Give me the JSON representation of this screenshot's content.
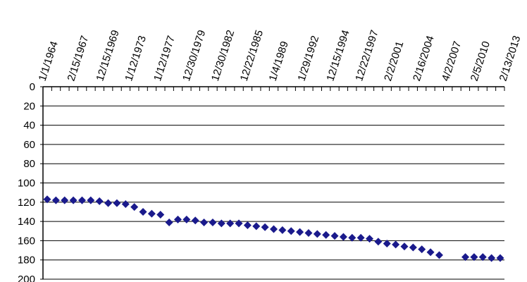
{
  "chart_data": {
    "type": "scatter",
    "title": "",
    "xlabel": "",
    "ylabel": "",
    "y_axis_reversed": true,
    "ylim": [
      0,
      200
    ],
    "y_ticks": [
      0,
      20,
      40,
      60,
      80,
      100,
      120,
      140,
      160,
      180,
      200
    ],
    "x_category_labels": [
      "1/1/1964",
      "2/15/1967",
      "12/15/1969",
      "1/12/1973",
      "1/12/1977",
      "12/30/1979",
      "12/30/1982",
      "12/22/1985",
      "1/4/1989",
      "1/29/1992",
      "12/15/1994",
      "12/22/1997",
      "2/2/2001",
      "2/16/2004",
      "4/2/2007",
      "2/5/2010",
      "2/13/2013"
    ],
    "grid": "horizontal",
    "marker": "diamond",
    "colors": {
      "marker": "#1a1a8c",
      "axis": "#000000",
      "grid": "#000000"
    },
    "values": [
      117,
      118,
      118,
      118,
      118,
      118,
      119,
      121,
      121,
      122,
      125,
      130,
      132,
      133,
      141,
      138,
      138,
      139,
      141,
      141,
      142,
      142,
      142,
      144,
      145,
      146,
      148,
      149,
      150,
      151,
      152,
      153,
      154,
      155,
      156,
      157,
      157,
      158,
      161,
      163,
      164,
      166,
      167,
      169,
      172,
      175,
      null,
      null,
      177,
      177,
      177,
      178,
      178
    ]
  }
}
